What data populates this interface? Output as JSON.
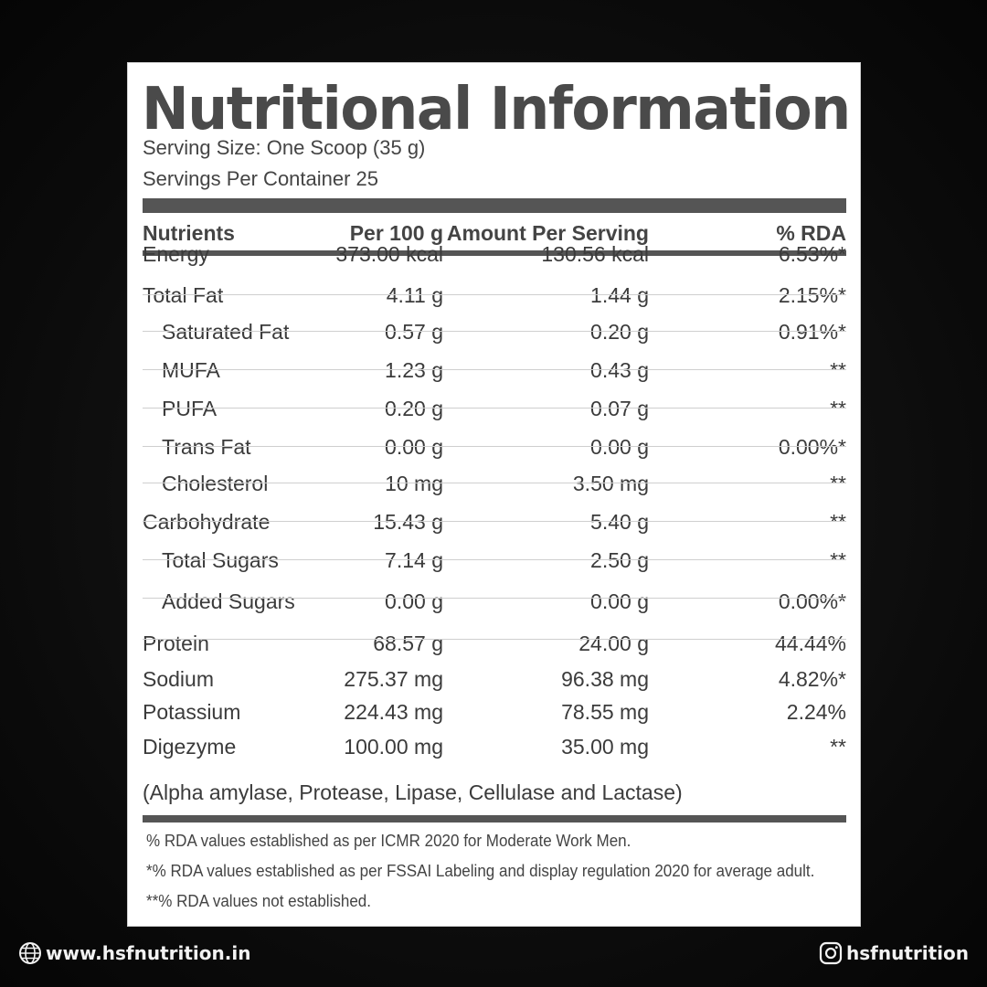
{
  "title": "Nutritional Information",
  "serving_size": "Serving Size: One Scoop (35 g)",
  "servings_per_container": "Servings Per Container 25",
  "columns": {
    "nutrient": "Nutrients",
    "per100": "Per 100 g",
    "serving": "Amount Per Serving",
    "rda": "% RDA"
  },
  "rows": [
    {
      "name": "Energy",
      "per100": "373.00 kcal",
      "serving": "130.56 kcal",
      "rda": "6.53%*",
      "indent": false
    },
    {
      "name": "Total Fat",
      "per100": "4.11 g",
      "serving": "1.44 g",
      "rda": "2.15%*",
      "indent": false
    },
    {
      "name": "Saturated Fat",
      "per100": "0.57 g",
      "serving": "0.20 g",
      "rda": "0.91%*",
      "indent": true
    },
    {
      "name": "MUFA",
      "per100": "1.23 g",
      "serving": "0.43 g",
      "rda": "**",
      "indent": true
    },
    {
      "name": "PUFA",
      "per100": "0.20 g",
      "serving": "0.07 g",
      "rda": "**",
      "indent": true
    },
    {
      "name": "Trans Fat",
      "per100": "0.00 g",
      "serving": "0.00 g",
      "rda": "0.00%*",
      "indent": true
    },
    {
      "name": "Cholesterol",
      "per100": "10 mg",
      "serving": "3.50 mg",
      "rda": "**",
      "indent": true
    },
    {
      "name": "Carbohydrate",
      "per100": "15.43 g",
      "serving": "5.40 g",
      "rda": "**",
      "indent": false
    },
    {
      "name": "Total Sugars",
      "per100": "7.14 g",
      "serving": "2.50 g",
      "rda": "**",
      "indent": true
    },
    {
      "name": "Added Sugars",
      "per100": "0.00 g",
      "serving": "0.00 g",
      "rda": "0.00%*",
      "indent": true
    },
    {
      "name": "Protein",
      "per100": "68.57 g",
      "serving": "24.00 g",
      "rda": "44.44%",
      "indent": false
    },
    {
      "name": "Sodium",
      "per100": "275.37 mg",
      "serving": "96.38 mg",
      "rda": "4.82%*",
      "indent": false
    },
    {
      "name": "Potassium",
      "per100": "224.43 mg",
      "serving": "78.55 mg",
      "rda": "2.24%",
      "indent": false
    },
    {
      "name": "Digezyme",
      "per100": "100.00 mg",
      "serving": "35.00 mg",
      "rda": "**",
      "indent": false
    }
  ],
  "digezyme_note": "(Alpha amylase, Protease, Lipase, Cellulase and Lactase)",
  "footnotes": [
    "% RDA values established as per ICMR 2020 for Moderate Work Men.",
    "*% RDA values established as per FSSAI Labeling and display regulation 2020 for average adult.",
    "**% RDA values not established."
  ],
  "footer": {
    "website": "www.hsfnutrition.in",
    "website_icon": "globe-icon",
    "instagram": "hsfnutrition",
    "instagram_icon": "instagram-icon"
  },
  "colors": {
    "background": "#0b0b0b",
    "panel": "#ffffff",
    "text": "#3d3d3d",
    "bars": "#555555",
    "footer_text": "#f2f2f2"
  }
}
